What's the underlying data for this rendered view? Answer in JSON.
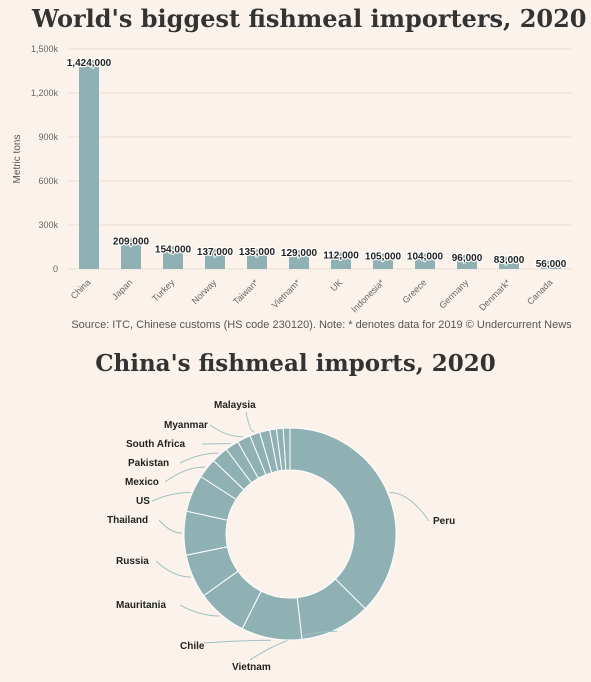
{
  "title_bar": "World's biggest fishmeal importers, 2020",
  "title_pie": "China's fishmeal imports, 2020",
  "source": "Source: ITC, Chinese customs (HS code 230120). Note: * denotes data for 2019 © Undercurrent News",
  "colors": {
    "bar": "#8fb1b3",
    "grid": "#e8ddd2",
    "background": "#fbf3eb",
    "leader": "#9fc1c3"
  },
  "chart_data": [
    {
      "type": "bar",
      "title": "World's biggest fishmeal importers, 2020",
      "ylabel": "Metric tons",
      "xlabel": "",
      "ylim": [
        0,
        1500000
      ],
      "yticks": [
        0,
        300000,
        600000,
        900000,
        1200000,
        1500000
      ],
      "ytick_labels": [
        "0",
        "300k",
        "600k",
        "900k",
        "1,200k",
        "1,500k"
      ],
      "grid": true,
      "categories": [
        "China",
        "Japan",
        "Turkey",
        "Norway",
        "Taiwan*",
        "Vietnam*",
        "UK",
        "Indonesia*",
        "Greece",
        "Germany",
        "Denmark*",
        "Canada"
      ],
      "values": [
        1424000,
        209000,
        154000,
        137000,
        135000,
        129000,
        112000,
        105000,
        104000,
        96000,
        83000,
        56000
      ],
      "data_labels": [
        "1,424,000",
        "209,000",
        "154,000",
        "137,000",
        "135,000",
        "129,000",
        "112,000",
        "105,000",
        "104,000",
        "96,000",
        "83,000",
        "56,000"
      ]
    },
    {
      "type": "pie",
      "subtype": "donut",
      "title": "China's fishmeal imports, 2020",
      "order": "clockwise from top",
      "labels": [
        "Peru",
        "Vietnam",
        "Chile",
        "Mauritania",
        "Russia",
        "Thailand",
        "US",
        "Mexico",
        "Pakistan",
        "South Africa",
        "Myanmar",
        "Malaysia",
        "",
        "",
        "",
        ""
      ],
      "values": [
        36.5,
        10.5,
        9,
        7.5,
        6.5,
        6.5,
        5.5,
        3,
        2.5,
        2,
        2,
        1.5,
        1.5,
        1,
        1,
        1
      ]
    }
  ]
}
